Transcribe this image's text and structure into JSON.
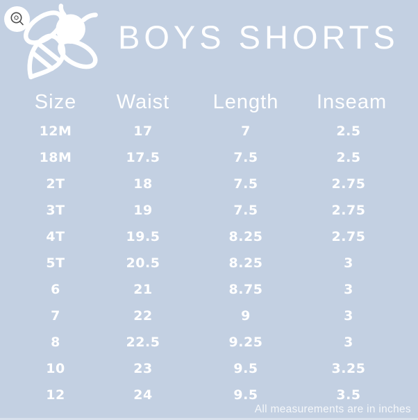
{
  "page": {
    "background_color": "#c3d0e2",
    "text_color": "#ffffff"
  },
  "header": {
    "title": "BOYS SHORTS"
  },
  "table": {
    "columns": [
      "Size",
      "Waist",
      "Length",
      "Inseam"
    ],
    "rows": [
      [
        "12M",
        "17",
        "7",
        "2.5"
      ],
      [
        "18M",
        "17.5",
        "7.5",
        "2.5"
      ],
      [
        "2T",
        "18",
        "7.5",
        "2.75"
      ],
      [
        "3T",
        "19",
        "7.5",
        "2.75"
      ],
      [
        "4T",
        "19.5",
        "8.25",
        "2.75"
      ],
      [
        "5T",
        "20.5",
        "8.25",
        "3"
      ],
      [
        "6",
        "21",
        "8.75",
        "3"
      ],
      [
        "7",
        "22",
        "9",
        "3"
      ],
      [
        "8",
        "22.5",
        "9.25",
        "3"
      ],
      [
        "10",
        "23",
        "9.5",
        "3.25"
      ],
      [
        "12",
        "24",
        "9.5",
        "3.5"
      ]
    ]
  },
  "footer": {
    "note": "All measurements are in inches"
  },
  "chart_data": {
    "type": "table",
    "title": "BOYS SHORTS",
    "columns": [
      "Size",
      "Waist",
      "Length",
      "Inseam"
    ],
    "rows": [
      [
        "12M",
        17,
        7,
        2.5
      ],
      [
        "18M",
        17.5,
        7.5,
        2.5
      ],
      [
        "2T",
        18,
        7.5,
        2.75
      ],
      [
        "3T",
        19,
        7.5,
        2.75
      ],
      [
        "4T",
        19.5,
        8.25,
        2.75
      ],
      [
        "5T",
        20.5,
        8.25,
        3
      ],
      [
        "6",
        21,
        8.75,
        3
      ],
      [
        "7",
        22,
        9,
        3
      ],
      [
        "8",
        22.5,
        9.25,
        3
      ],
      [
        "10",
        23,
        9.5,
        3.25
      ],
      [
        "12",
        24,
        9.5,
        3.5
      ]
    ],
    "units": "inches"
  }
}
